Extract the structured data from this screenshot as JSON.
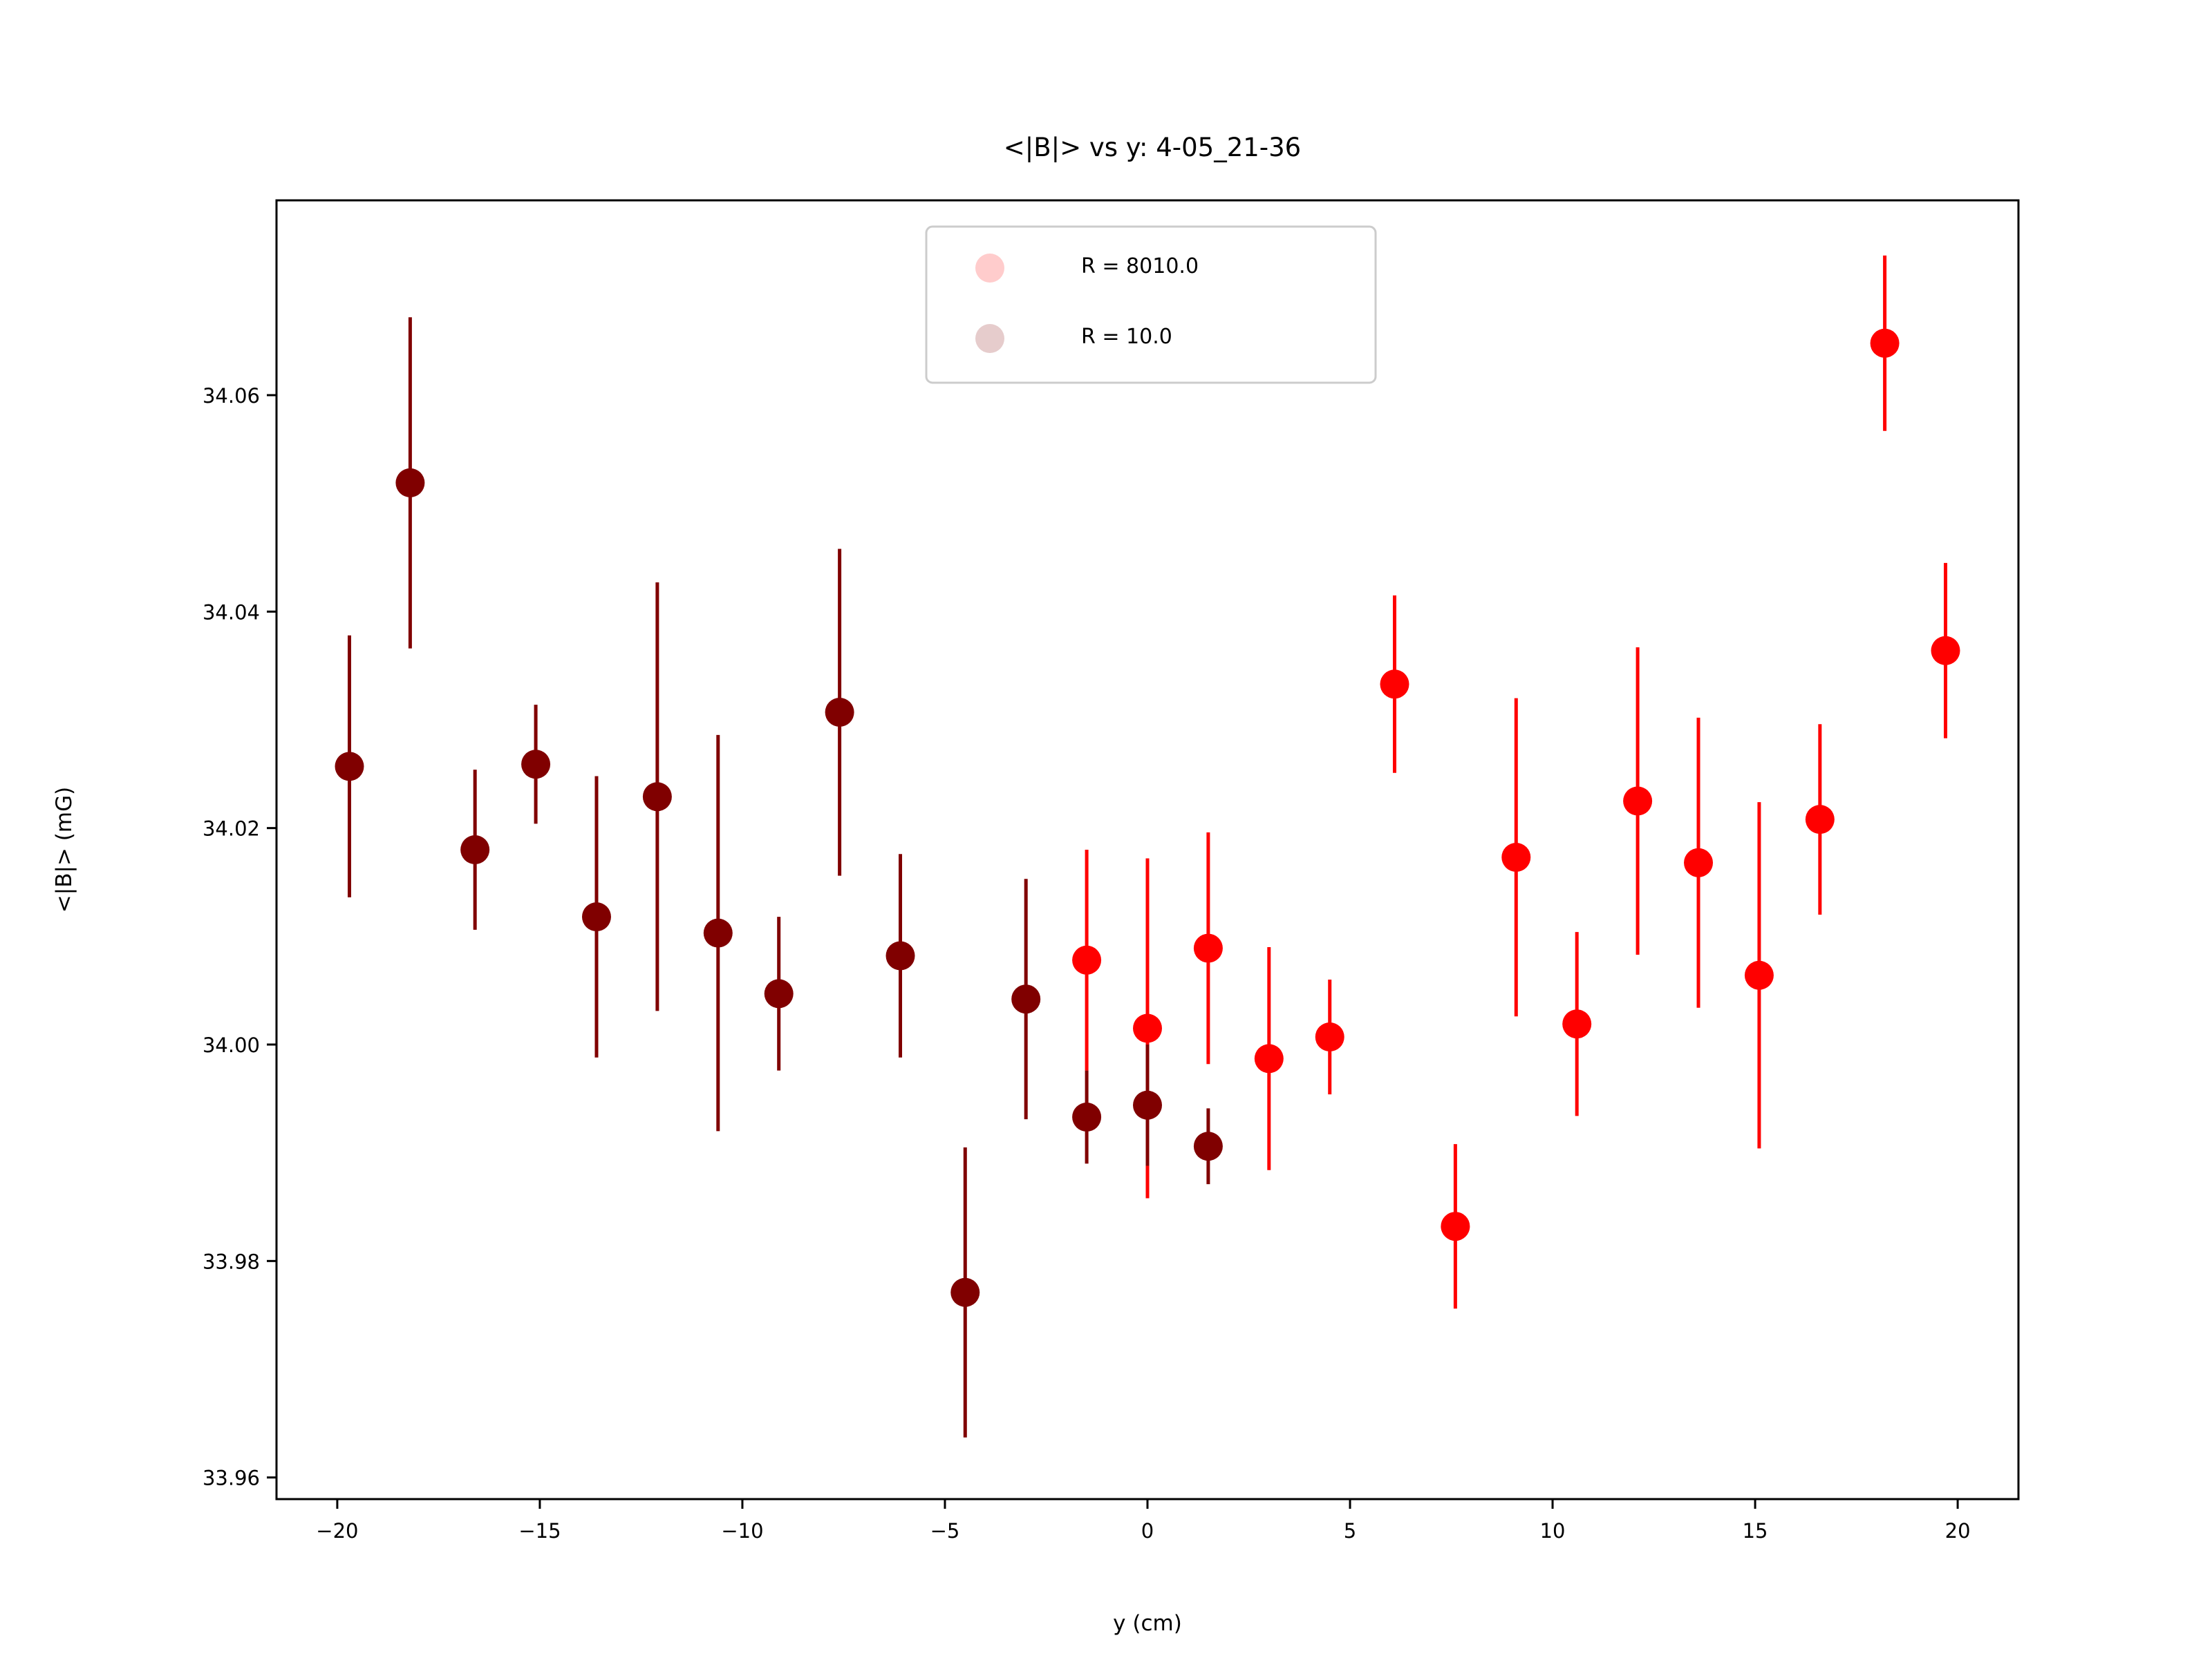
{
  "chart_data": {
    "type": "scatter",
    "title": "<|B|> vs y: 4-05_21-36",
    "xlabel": "y (cm)",
    "ylabel": "<|B|> (mG)",
    "xlim": [
      -21.5,
      21.5
    ],
    "ylim": [
      33.958,
      34.078
    ],
    "xticks": [
      -20,
      -15,
      -10,
      -5,
      0,
      5,
      10,
      15,
      20
    ],
    "xtick_labels": [
      "−20",
      "−15",
      "−10",
      "−5",
      "0",
      "5",
      "10",
      "15",
      "20"
    ],
    "yticks": [
      33.96,
      33.98,
      34.0,
      34.02,
      34.04,
      34.06
    ],
    "ytick_labels": [
      "33.96",
      "33.98",
      "34.00",
      "34.02",
      "34.04",
      "34.06"
    ],
    "grid": false,
    "legend_position": "upper center",
    "series": [
      {
        "name": "R = 8010.0",
        "color": "#ff0000",
        "points": [
          {
            "x": -1.5,
            "y": 34.0078,
            "err": 0.0102
          },
          {
            "x": 0.0,
            "y": 34.0015,
            "err": 0.0157
          },
          {
            "x": 1.5,
            "y": 34.0089,
            "err": 0.0107
          },
          {
            "x": 3.0,
            "y": 33.9987,
            "err": 0.0103
          },
          {
            "x": 4.5,
            "y": 34.0007,
            "err": 0.0053
          },
          {
            "x": 6.1,
            "y": 34.0333,
            "err": 0.0082
          },
          {
            "x": 7.6,
            "y": 33.9832,
            "err": 0.0076
          },
          {
            "x": 9.1,
            "y": 34.0173,
            "err": 0.0147
          },
          {
            "x": 10.6,
            "y": 34.0019,
            "err": 0.0085
          },
          {
            "x": 12.1,
            "y": 34.0225,
            "err": 0.0142
          },
          {
            "x": 13.6,
            "y": 34.0168,
            "err": 0.0134
          },
          {
            "x": 15.1,
            "y": 34.0064,
            "err": 0.016
          },
          {
            "x": 16.6,
            "y": 34.0208,
            "err": 0.0088
          },
          {
            "x": 18.2,
            "y": 34.0648,
            "err": 0.0081
          },
          {
            "x": 19.7,
            "y": 34.0364,
            "err": 0.0081
          }
        ]
      },
      {
        "name": "R = 10.0",
        "color": "#800000",
        "points": [
          {
            "x": -19.7,
            "y": 34.0257,
            "err": 0.0121
          },
          {
            "x": -18.2,
            "y": 34.0519,
            "err": 0.0153
          },
          {
            "x": -16.6,
            "y": 34.018,
            "err": 0.0074
          },
          {
            "x": -15.1,
            "y": 34.0259,
            "err": 0.0055
          },
          {
            "x": -13.6,
            "y": 34.0118,
            "err": 0.013
          },
          {
            "x": -12.1,
            "y": 34.0229,
            "err": 0.0198
          },
          {
            "x": -10.6,
            "y": 34.0103,
            "err": 0.0183
          },
          {
            "x": -9.1,
            "y": 34.0047,
            "err": 0.0071
          },
          {
            "x": -7.6,
            "y": 34.0307,
            "err": 0.0151
          },
          {
            "x": -6.1,
            "y": 34.0082,
            "err": 0.0094
          },
          {
            "x": -4.5,
            "y": 33.9771,
            "err": 0.0134
          },
          {
            "x": -3.0,
            "y": 34.0042,
            "err": 0.0111
          },
          {
            "x": -1.5,
            "y": 33.9933,
            "err": 0.0043
          },
          {
            "x": 0.0,
            "y": 33.9944,
            "err": 0.0056
          },
          {
            "x": 1.5,
            "y": 33.9906,
            "err": 0.0035
          }
        ]
      }
    ]
  }
}
